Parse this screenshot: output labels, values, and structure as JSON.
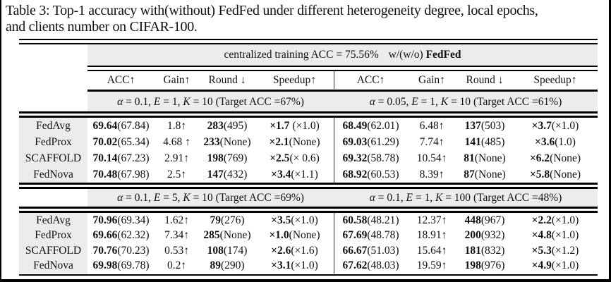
{
  "caption": {
    "line1": "Table 3: Top-1 accuracy with(without) FedFed under different heterogeneity degree, local epochs,",
    "line2": "and clients number on CIFAR-100."
  },
  "colors": {
    "header_gray": "#ececec",
    "rule_black": "#000000"
  },
  "table": {
    "top_header": {
      "prefix": "centralized training ACC = 75.56%",
      "middle": "w/(w/o)",
      "bold_suffix": "FedFed"
    },
    "column_headers": [
      "ACC↑",
      "Gain↑",
      "Round ↓",
      "Speedup↑",
      "ACC↑",
      "Gain↑",
      "Round ↓",
      "Speedup↑"
    ],
    "blocks": [
      {
        "subheader_left": {
          "math": [
            [
              "α",
              1
            ],
            [
              " = 0.1, ",
              0
            ],
            [
              "E",
              1
            ],
            [
              " = 1, ",
              0
            ],
            [
              "K",
              1
            ],
            [
              " = 10 ",
              0
            ]
          ],
          "target": "(Target ACC =67%)"
        },
        "subheader_right": {
          "math": [
            [
              "α",
              1
            ],
            [
              " = 0.05, ",
              0
            ],
            [
              "E",
              1
            ],
            [
              " = 1, ",
              0
            ],
            [
              "K",
              1
            ],
            [
              " = 10 ",
              0
            ]
          ],
          "target": "(Target ACC =61%)"
        },
        "rows": [
          {
            "method": "FedAvg",
            "cells": [
              {
                "b": "69.64",
                "p": "(67.84)"
              },
              {
                "t": "1.8↑"
              },
              {
                "b": "283",
                "p": "(495)"
              },
              {
                "b": "×1.7",
                "p": " (×1.0)"
              },
              {
                "b": "68.49",
                "p": "(62.01)"
              },
              {
                "t": "6.48↑"
              },
              {
                "b": "137",
                "p": "(503)"
              },
              {
                "b": "×3.7",
                "p": "(×1.0)"
              }
            ]
          },
          {
            "method": "FedProx",
            "cells": [
              {
                "b": "70.02",
                "p": "(65.34)"
              },
              {
                "t": "4.68 ↑"
              },
              {
                "b": "233",
                "p": "(None)"
              },
              {
                "b": "×2.1",
                "p": "(None)"
              },
              {
                "b": "69.03",
                "p": "(61.29)"
              },
              {
                "t": "7.74↑"
              },
              {
                "b": "141",
                "p": "(485)"
              },
              {
                "b": "×3.6",
                "p": "(1.0)"
              }
            ]
          },
          {
            "method": "SCAFFOLD",
            "cells": [
              {
                "b": "70.14",
                "p": "(67.23)"
              },
              {
                "t": "2.91↑"
              },
              {
                "b": "198",
                "p": "(769)"
              },
              {
                "b": "×2.5",
                "p": "(× 0.6)"
              },
              {
                "b": "69.32",
                "p": "(58.78)"
              },
              {
                "t": "10.54↑"
              },
              {
                "b": "81",
                "p": "(None)"
              },
              {
                "b": "×6.2",
                "p": "(None)"
              }
            ]
          },
          {
            "method": "FedNova",
            "cells": [
              {
                "b": "70.48",
                "p": "(67.98)"
              },
              {
                "t": "2.5↑"
              },
              {
                "b": "147",
                "p": "(432)"
              },
              {
                "b": "×3.4",
                "p": "(×1.1)"
              },
              {
                "b": "68.92",
                "p": "(60.53)"
              },
              {
                "t": "8.39↑"
              },
              {
                "b": "87",
                "p": "(None)"
              },
              {
                "b": "×5.8",
                "p": "(None)"
              }
            ]
          }
        ]
      },
      {
        "subheader_left": {
          "math": [
            [
              "α",
              1
            ],
            [
              " = 0.1, ",
              0
            ],
            [
              "E",
              1
            ],
            [
              " = 5, ",
              0
            ],
            [
              "K",
              1
            ],
            [
              " = 10 ",
              0
            ]
          ],
          "target": "(Target ACC =69%)"
        },
        "subheader_right": {
          "math": [
            [
              "α",
              1
            ],
            [
              " = 0.1, ",
              0
            ],
            [
              "E",
              1
            ],
            [
              " = 1, ",
              0
            ],
            [
              "K",
              1
            ],
            [
              " = 100 ",
              0
            ]
          ],
          "target": "(Target ACC =48%)"
        },
        "rows": [
          {
            "method": "FedAvg",
            "cells": [
              {
                "b": "70.96",
                "p": "(69.34)"
              },
              {
                "t": "1.62↑"
              },
              {
                "b": "79",
                "p": "(276)"
              },
              {
                "b": "×3.5",
                "p": "(×1.0)"
              },
              {
                "b": "60.58",
                "p": "(48.21)"
              },
              {
                "t": "12.37↑"
              },
              {
                "b": "448",
                "p": "(967)"
              },
              {
                "b": "×2.2",
                "p": "(×1.0)"
              }
            ]
          },
          {
            "method": "FedProx",
            "cells": [
              {
                "b": "69.66",
                "p": "(62.32)"
              },
              {
                "t": "7.34↑"
              },
              {
                "b": "285",
                "p": "(None)"
              },
              {
                "b": "×1.0",
                "p": "(None)"
              },
              {
                "b": "67.69",
                "p": "(48.78)"
              },
              {
                "t": "18.91↑"
              },
              {
                "b": "200",
                "p": "(932)"
              },
              {
                "b": "×4.8",
                "p": "(×1.0)"
              }
            ]
          },
          {
            "method": "SCAFFOLD",
            "cells": [
              {
                "b": "70.76",
                "p": "(70.23)"
              },
              {
                "t": "0.53↑"
              },
              {
                "b": "108",
                "p": "(174)"
              },
              {
                "b": "×2.6",
                "p": "(×1.6)"
              },
              {
                "b": "66.67",
                "p": "(51.03)"
              },
              {
                "t": "15.64↑"
              },
              {
                "b": "181",
                "p": "(832)"
              },
              {
                "b": "×5.3",
                "p": "(×1.2)"
              }
            ]
          },
          {
            "method": "FedNova",
            "cells": [
              {
                "b": "69.98",
                "p": "(69.78)"
              },
              {
                "t": "0.2↑"
              },
              {
                "b": "89",
                "p": "(290)"
              },
              {
                "b": "×3.1",
                "p": "(×1.0)"
              },
              {
                "b": "67.62",
                "p": "(48.03)"
              },
              {
                "t": "19.59↑"
              },
              {
                "b": "198",
                "p": "(976)"
              },
              {
                "b": "×4.9",
                "p": "(×1.0)"
              }
            ]
          }
        ]
      }
    ]
  }
}
